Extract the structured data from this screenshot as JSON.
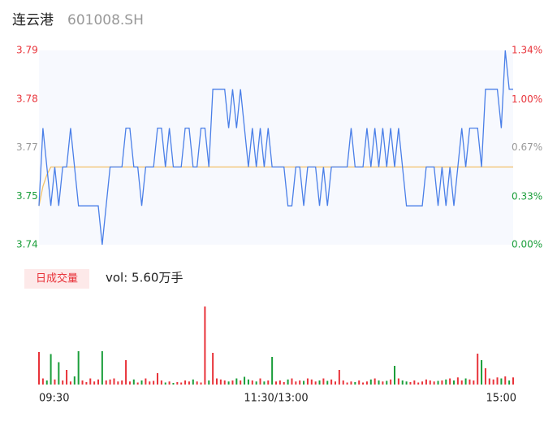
{
  "header": {
    "name": "连云港",
    "code": "601008.SH"
  },
  "chart_data": [
    {
      "type": "line",
      "x": [
        0,
        2,
        4,
        6,
        8,
        10,
        12,
        14,
        16,
        18,
        20,
        22,
        24,
        26,
        28,
        30,
        32,
        34,
        36,
        38,
        40,
        42,
        44,
        46,
        48,
        50,
        52,
        54,
        56,
        58,
        60,
        62,
        64,
        66,
        68,
        70,
        72,
        74,
        76,
        78,
        80,
        82,
        84,
        86,
        88,
        90,
        92,
        94,
        96,
        98,
        100,
        102,
        104,
        106,
        108,
        110,
        112,
        114,
        116,
        118,
        120,
        122,
        124,
        126,
        128,
        130,
        132,
        134,
        136,
        138,
        140,
        142,
        144,
        146,
        148,
        150,
        152,
        154,
        156,
        158,
        160,
        162,
        164,
        166,
        168,
        170,
        172,
        174,
        176,
        178,
        180,
        182,
        184,
        186,
        188,
        190,
        192,
        194,
        196,
        198,
        200,
        202,
        204,
        206,
        208,
        210,
        212,
        214,
        216,
        218,
        220,
        222,
        224,
        226,
        228,
        230,
        232,
        234,
        236,
        238,
        240
      ],
      "xlim": [
        0,
        240
      ],
      "xticks": [
        {
          "value": 0,
          "label": "09:30"
        },
        {
          "value": 120,
          "label": "11:30/13:00"
        },
        {
          "value": 240,
          "label": "15:00"
        }
      ],
      "ylim": [
        3.74,
        3.79
      ],
      "yticks": [
        {
          "value": 3.74,
          "label": "3.74"
        },
        {
          "value": 3.7525,
          "label": "3.75"
        },
        {
          "value": 3.765,
          "label": "3.77"
        },
        {
          "value": 3.7775,
          "label": "3.78"
        },
        {
          "value": 3.79,
          "label": "3.79"
        }
      ],
      "ytick_colors": [
        "#1a9e3a",
        "#1a9e3a",
        "#999999",
        "#e8333a",
        "#e8333a"
      ],
      "y2lim": [
        0,
        1.34
      ],
      "y2ticks": [
        {
          "value": 0,
          "label": "0.00%"
        },
        {
          "value": 0.33,
          "label": "0.33%"
        },
        {
          "value": 0.67,
          "label": "0.67%"
        },
        {
          "value": 1,
          "label": "1.00%"
        },
        {
          "value": 1.34,
          "label": "1.34%"
        }
      ],
      "y2tick_colors": [
        "#1a9e3a",
        "#1a9e3a",
        "#999999",
        "#e8333a",
        "#e8333a"
      ],
      "series": [
        {
          "color": "#4a7fe8",
          "values": [
            3.75,
            3.77,
            3.76,
            3.75,
            3.76,
            3.75,
            3.76,
            3.76,
            3.77,
            3.76,
            3.75,
            3.75,
            3.75,
            3.75,
            3.75,
            3.75,
            3.74,
            3.75,
            3.76,
            3.76,
            3.76,
            3.76,
            3.77,
            3.77,
            3.76,
            3.76,
            3.75,
            3.76,
            3.76,
            3.76,
            3.77,
            3.77,
            3.76,
            3.77,
            3.76,
            3.76,
            3.76,
            3.77,
            3.77,
            3.76,
            3.76,
            3.77,
            3.77,
            3.76,
            3.78,
            3.78,
            3.78,
            3.78,
            3.77,
            3.78,
            3.77,
            3.78,
            3.77,
            3.76,
            3.77,
            3.76,
            3.77,
            3.76,
            3.77,
            3.76,
            3.76,
            3.76,
            3.76,
            3.75,
            3.75,
            3.76,
            3.76,
            3.75,
            3.76,
            3.76,
            3.76,
            3.75,
            3.76,
            3.75,
            3.76,
            3.76,
            3.76,
            3.76,
            3.76,
            3.77,
            3.76,
            3.76,
            3.76,
            3.77,
            3.76,
            3.77,
            3.76,
            3.77,
            3.76,
            3.77,
            3.76,
            3.77,
            3.76,
            3.75,
            3.75,
            3.75,
            3.75,
            3.75,
            3.76,
            3.76,
            3.76,
            3.75,
            3.76,
            3.75,
            3.76,
            3.75,
            3.76,
            3.77,
            3.76,
            3.77,
            3.77,
            3.77,
            3.76,
            3.78,
            3.78,
            3.78,
            3.78,
            3.77,
            3.79,
            3.78,
            3.78
          ]
        },
        {
          "color": "#f2c26b",
          "values": [
            3.75,
            3.755,
            3.758,
            3.76,
            3.76,
            3.76,
            3.76,
            3.76,
            3.76,
            3.76,
            3.76,
            3.76,
            3.76,
            3.76,
            3.76,
            3.76,
            3.76,
            3.76,
            3.76,
            3.76,
            3.76,
            3.76,
            3.76,
            3.76,
            3.76,
            3.76,
            3.76,
            3.76,
            3.76,
            3.76,
            3.76,
            3.76,
            3.76,
            3.76,
            3.76,
            3.76,
            3.76,
            3.76,
            3.76,
            3.76,
            3.76,
            3.76,
            3.76,
            3.76,
            3.76,
            3.76,
            3.76,
            3.76,
            3.76,
            3.76,
            3.76,
            3.76,
            3.76,
            3.76,
            3.76,
            3.76,
            3.76,
            3.76,
            3.76,
            3.76,
            3.76,
            3.76,
            3.76,
            3.76,
            3.76,
            3.76,
            3.76,
            3.76,
            3.76,
            3.76,
            3.76,
            3.76,
            3.76,
            3.76,
            3.76,
            3.76,
            3.76,
            3.76,
            3.76,
            3.76,
            3.76,
            3.76,
            3.76,
            3.76,
            3.76,
            3.76,
            3.76,
            3.76,
            3.76,
            3.76,
            3.76,
            3.76,
            3.76,
            3.76,
            3.76,
            3.76,
            3.76,
            3.76,
            3.76,
            3.76,
            3.76,
            3.76,
            3.76,
            3.76,
            3.76,
            3.76,
            3.76,
            3.76,
            3.76,
            3.76,
            3.76,
            3.76,
            3.76,
            3.76,
            3.76,
            3.76,
            3.76,
            3.76,
            3.76,
            3.76,
            3.76
          ]
        }
      ]
    },
    {
      "type": "bar",
      "title": "日成交量",
      "subtitle": "vol: 5.60万手",
      "x": [
        0,
        2,
        4,
        6,
        8,
        10,
        12,
        14,
        16,
        18,
        20,
        22,
        24,
        26,
        28,
        30,
        32,
        34,
        36,
        38,
        40,
        42,
        44,
        46,
        48,
        50,
        52,
        54,
        56,
        58,
        60,
        62,
        64,
        66,
        68,
        70,
        72,
        74,
        76,
        78,
        80,
        82,
        84,
        86,
        88,
        90,
        92,
        94,
        96,
        98,
        100,
        102,
        104,
        106,
        108,
        110,
        112,
        114,
        116,
        118,
        120,
        122,
        124,
        126,
        128,
        130,
        132,
        134,
        136,
        138,
        140,
        142,
        144,
        146,
        148,
        150,
        152,
        154,
        156,
        158,
        160,
        162,
        164,
        166,
        168,
        170,
        172,
        174,
        176,
        178,
        180,
        182,
        184,
        186,
        188,
        190,
        192,
        194,
        196,
        198,
        200,
        202,
        204,
        206,
        208,
        210,
        212,
        214,
        216,
        218,
        220,
        222,
        224,
        226,
        228,
        230,
        232,
        234,
        236,
        238,
        240
      ],
      "xlim": [
        0,
        240
      ],
      "ylim": [
        0,
        4000
      ],
      "up_color": "#e8333a",
      "down_color": "#1a9e3a",
      "values": [
        1600,
        300,
        200,
        1500,
        250,
        1100,
        200,
        720,
        150,
        400,
        1640,
        200,
        120,
        300,
        150,
        250,
        1640,
        200,
        250,
        300,
        150,
        200,
        1200,
        150,
        250,
        100,
        200,
        300,
        150,
        180,
        560,
        200,
        100,
        150,
        80,
        120,
        100,
        200,
        150,
        250,
        150,
        100,
        3840,
        200,
        1560,
        300,
        250,
        200,
        150,
        200,
        300,
        200,
        380,
        250,
        200,
        150,
        300,
        150,
        200,
        1360,
        150,
        200,
        120,
        250,
        300,
        150,
        200,
        180,
        300,
        250,
        150,
        200,
        300,
        180,
        250,
        150,
        720,
        200,
        100,
        150,
        120,
        200,
        100,
        150,
        250,
        300,
        200,
        150,
        180,
        250,
        920,
        300,
        200,
        150,
        120,
        200,
        100,
        150,
        250,
        200,
        150,
        180,
        200,
        250,
        300,
        200,
        350,
        200,
        300,
        250,
        200,
        1520,
        1200,
        800,
        300,
        250,
        350,
        300,
        400,
        200,
        350
      ]
    }
  ]
}
